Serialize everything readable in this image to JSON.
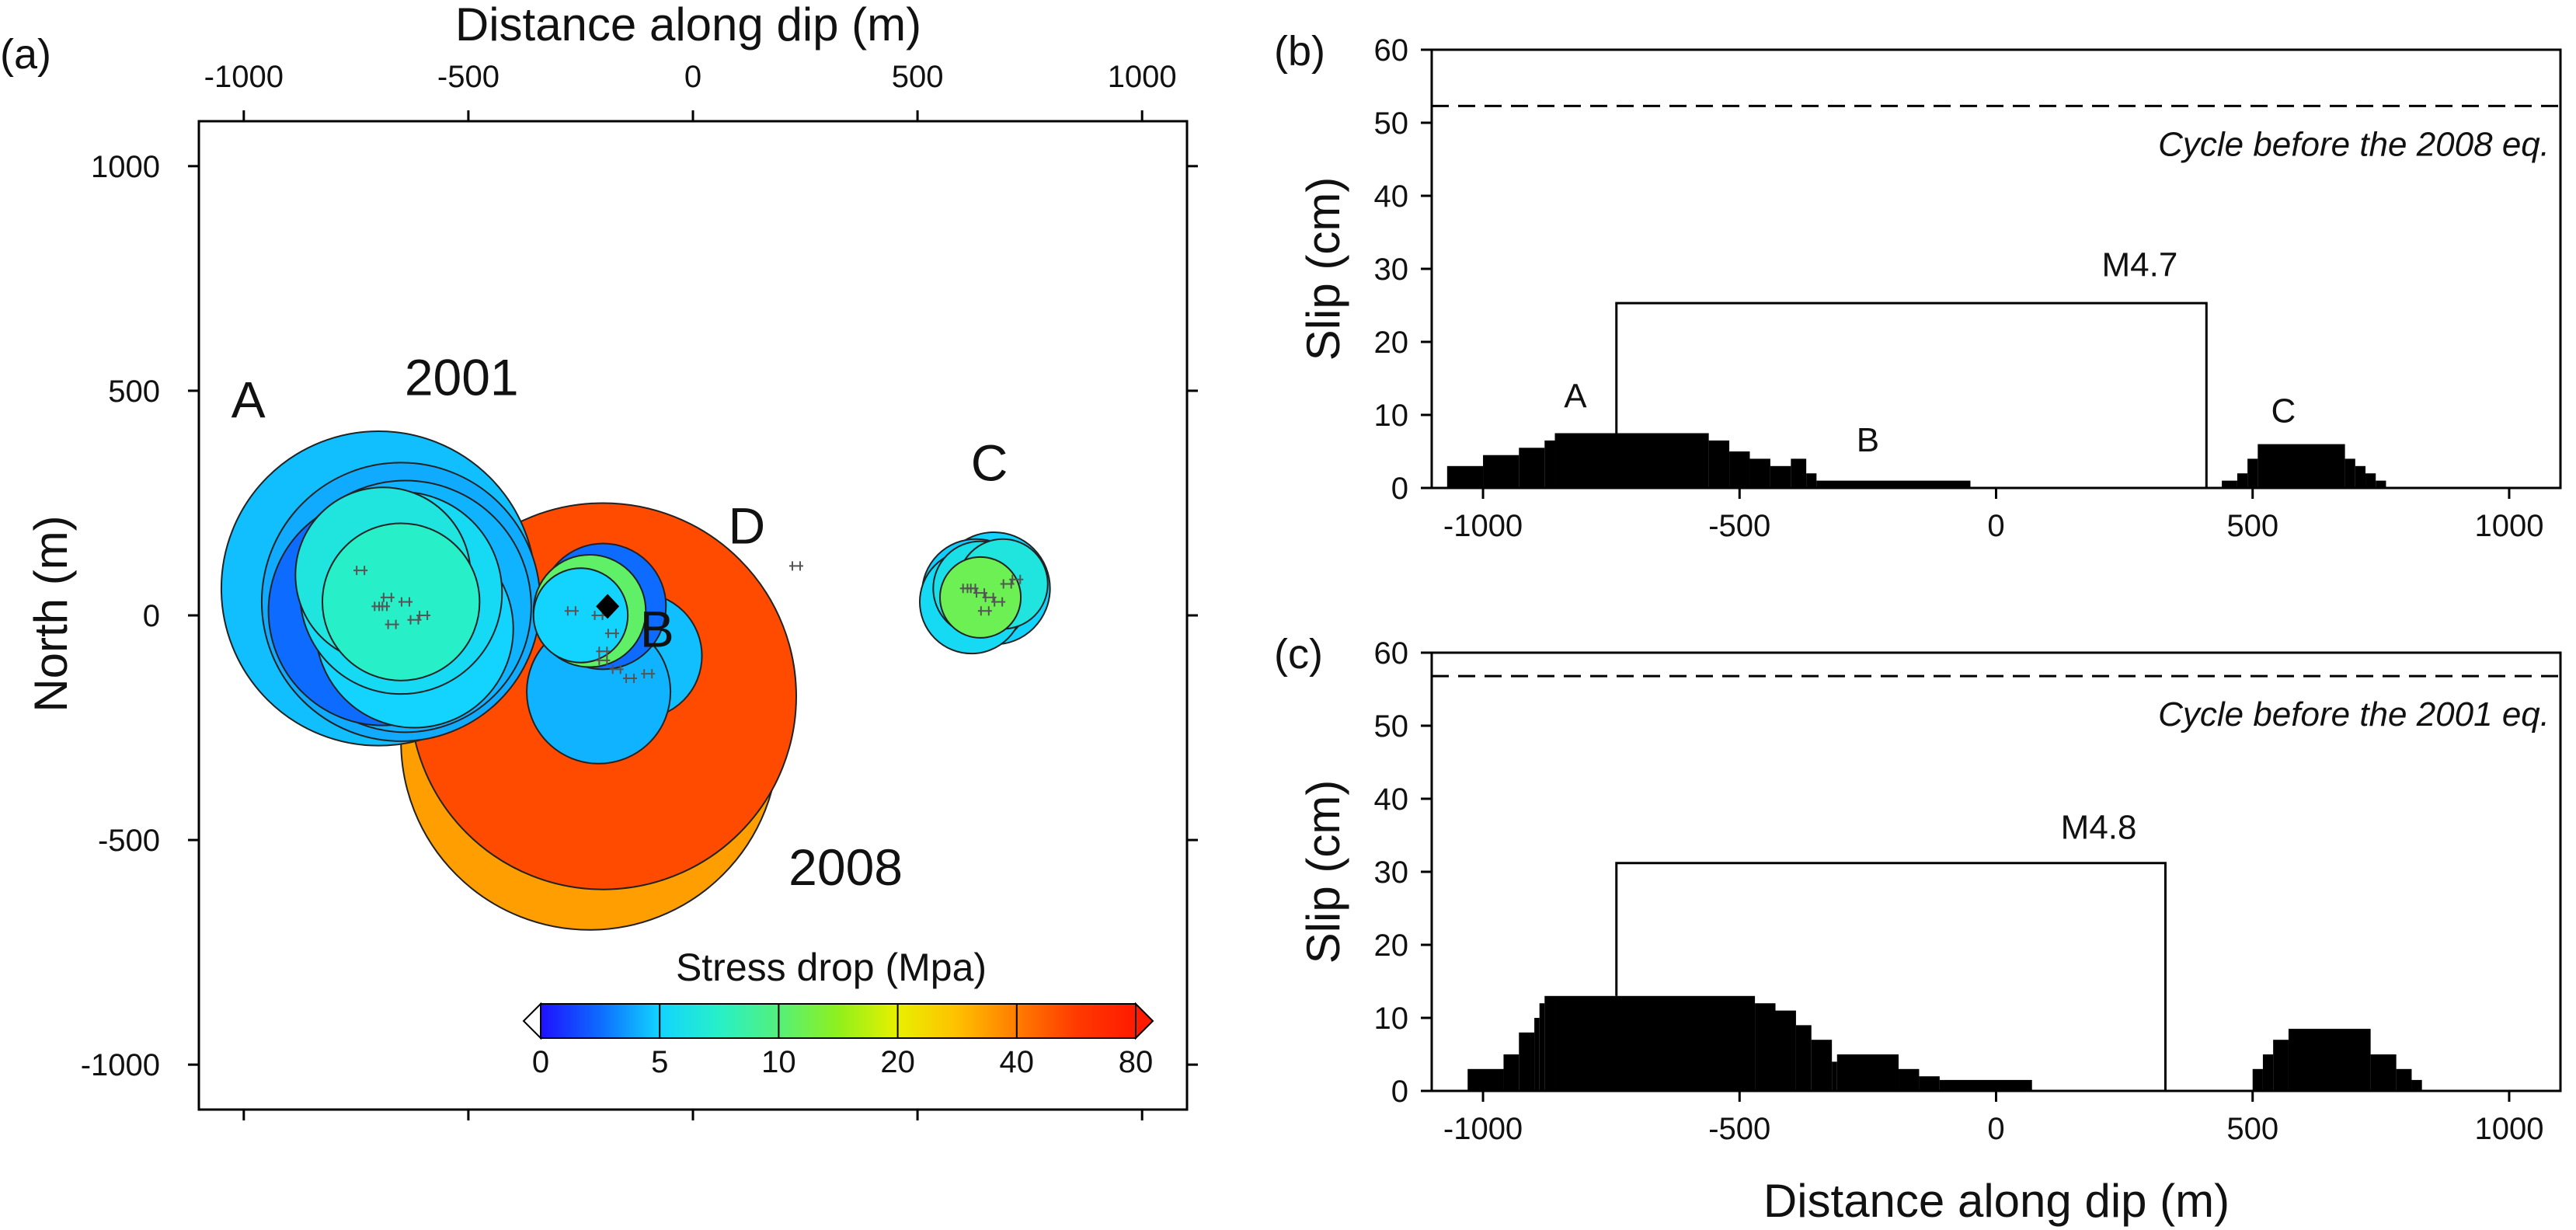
{
  "colors": {
    "background": "#ffffff",
    "axis": "#000000",
    "slip_fill": "#000000",
    "colorbar_stops": [
      "#1f10ff",
      "#0d6cff",
      "#12d4ff",
      "#27f0c8",
      "#54f07a",
      "#8ff01c",
      "#e8f000",
      "#ffc000",
      "#ff7c00",
      "#ff3a00",
      "#ff1a00"
    ],
    "hypocenter": "#000000",
    "cluster_marks": "#555555"
  },
  "chart_data": [
    {
      "id": "a",
      "panel_label": "(a)",
      "type": "scatter",
      "subtype": "circular source-patch map",
      "xlabel": "Distance along dip (m)",
      "ylabel": "North (m)",
      "xlim": [
        -1100,
        1100
      ],
      "ylim": [
        -1100,
        1100
      ],
      "xticks": [
        -1000,
        -500,
        0,
        500,
        1000
      ],
      "xtick_labels": [
        "-1000",
        "-500",
        "0",
        "500",
        "1000"
      ],
      "yticks": [
        1000,
        500,
        0,
        -500,
        -1000
      ],
      "ytick_labels": [
        "1000",
        "500",
        "0",
        "-500",
        "-1000"
      ],
      "x_axis_position": "top",
      "grid": false,
      "patches": [
        {
          "x": -230,
          "y": -280,
          "r": 420,
          "stress_drop": 35
        },
        {
          "x": -200,
          "y": -180,
          "r": 430,
          "stress_drop": 55
        },
        {
          "x": -700,
          "y": 60,
          "r": 350,
          "stress_drop": 4.5
        },
        {
          "x": -650,
          "y": 30,
          "r": 310,
          "stress_drop": 4
        },
        {
          "x": -640,
          "y": 20,
          "r": 280,
          "stress_drop": 4.2
        },
        {
          "x": -690,
          "y": 10,
          "r": 255,
          "stress_drop": 2.5
        },
        {
          "x": -620,
          "y": -30,
          "r": 220,
          "stress_drop": 5
        },
        {
          "x": -650,
          "y": 50,
          "r": 225,
          "stress_drop": 5.5
        },
        {
          "x": -690,
          "y": 90,
          "r": 195,
          "stress_drop": 6.5
        },
        {
          "x": -650,
          "y": 30,
          "r": 175,
          "stress_drop": 7.5
        },
        {
          "x": -120,
          "y": -90,
          "r": 140,
          "stress_drop": 4.5
        },
        {
          "x": -210,
          "y": -170,
          "r": 160,
          "stress_drop": 4.2
        },
        {
          "x": -200,
          "y": 20,
          "r": 140,
          "stress_drop": 2.5
        },
        {
          "x": -230,
          "y": 10,
          "r": 125,
          "stress_drop": 11
        },
        {
          "x": -250,
          "y": 0,
          "r": 105,
          "stress_drop": 5
        },
        {
          "x": 670,
          "y": 60,
          "r": 125,
          "stress_drop": 5
        },
        {
          "x": 630,
          "y": 50,
          "r": 120,
          "stress_drop": 4.8
        },
        {
          "x": 620,
          "y": 30,
          "r": 115,
          "stress_drop": 5.5
        },
        {
          "x": 640,
          "y": 60,
          "r": 105,
          "stress_drop": 6
        },
        {
          "x": 690,
          "y": 70,
          "r": 100,
          "stress_drop": 6.5
        },
        {
          "x": 640,
          "y": 40,
          "r": 90,
          "stress_drop": 12
        }
      ],
      "hypocenter": {
        "x": -190,
        "y": 20
      },
      "clusters": [
        {
          "x": [
            -740,
            -680,
            -690,
            -640,
            -620,
            -700,
            -670,
            -600
          ],
          "y": [
            100,
            40,
            20,
            30,
            -10,
            20,
            -20,
            0
          ]
        },
        {
          "x": [
            -270,
            -210,
            -200,
            -170,
            -140,
            -100,
            -200,
            -180
          ],
          "y": [
            10,
            0,
            -80,
            -120,
            -140,
            -130,
            -100,
            -40
          ]
        },
        {
          "x": [
            610,
            640,
            660,
            700,
            720,
            680,
            650,
            620
          ],
          "y": [
            60,
            50,
            40,
            70,
            80,
            30,
            10,
            60
          ]
        },
        {
          "x": [
            230
          ],
          "y": [
            110
          ]
        }
      ],
      "annotations": [
        {
          "text": "A",
          "x": -990,
          "y": 440,
          "size": "big"
        },
        {
          "text": "2001",
          "x": -515,
          "y": 490,
          "size": "big"
        },
        {
          "text": "D",
          "x": 120,
          "y": 160,
          "size": "big"
        },
        {
          "text": "B",
          "x": -80,
          "y": -70,
          "size": "big"
        },
        {
          "text": "C",
          "x": 660,
          "y": 300,
          "size": "big"
        },
        {
          "text": "2008",
          "x": 340,
          "y": -600,
          "size": "big"
        }
      ],
      "colorbar": {
        "title": "Stress drop (Mpa)",
        "ticks": [
          "0",
          "5",
          "10",
          "20",
          "40",
          "80"
        ],
        "values": [
          0,
          5,
          10,
          20,
          40,
          80
        ],
        "extend": "both"
      }
    },
    {
      "id": "b",
      "panel_label": "(b)",
      "type": "area",
      "xlabel": "",
      "ylabel": "Slip (cm)",
      "xlim": [
        -1100,
        1100
      ],
      "ylim": [
        0,
        60
      ],
      "xticks": [
        -1000,
        -500,
        0,
        500,
        1000
      ],
      "xtick_labels": [
        "-1000",
        "-500",
        "0",
        "500",
        "1000"
      ],
      "yticks": [
        0,
        10,
        20,
        30,
        40,
        50,
        60
      ],
      "ytick_labels": [
        "0",
        "10",
        "20",
        "30",
        "40",
        "50",
        "60"
      ],
      "grid": false,
      "cycle_line": {
        "y": 52.3,
        "label": "Cycle before the 2008 eq."
      },
      "slip_segments": [
        {
          "x0": -1070,
          "x1": -1000,
          "y": 3
        },
        {
          "x0": -1000,
          "x1": -930,
          "y": 4.5
        },
        {
          "x0": -930,
          "x1": -880,
          "y": 5.5
        },
        {
          "x0": -880,
          "x1": -860,
          "y": 6.5
        },
        {
          "x0": -860,
          "x1": -560,
          "y": 7.5
        },
        {
          "x0": -560,
          "x1": -520,
          "y": 6.5
        },
        {
          "x0": -520,
          "x1": -480,
          "y": 5
        },
        {
          "x0": -480,
          "x1": -440,
          "y": 4
        },
        {
          "x0": -440,
          "x1": -400,
          "y": 3
        },
        {
          "x0": -400,
          "x1": -370,
          "y": 4
        },
        {
          "x0": -370,
          "x1": -350,
          "y": 2
        },
        {
          "x0": -350,
          "x1": -50,
          "y": 1
        },
        {
          "x0": 440,
          "x1": 470,
          "y": 1
        },
        {
          "x0": 470,
          "x1": 490,
          "y": 2
        },
        {
          "x0": 490,
          "x1": 510,
          "y": 4
        },
        {
          "x0": 510,
          "x1": 680,
          "y": 6
        },
        {
          "x0": 680,
          "x1": 700,
          "y": 4
        },
        {
          "x0": 700,
          "x1": 720,
          "y": 3
        },
        {
          "x0": 720,
          "x1": 740,
          "y": 2
        },
        {
          "x0": 740,
          "x1": 760,
          "y": 1
        }
      ],
      "bracket": {
        "x0": -740,
        "x1": 410,
        "y": 25.3,
        "y_base": 7.5,
        "label": "M4.7",
        "label_x": 280,
        "label_y": 29
      },
      "annotations": [
        {
          "text": "A",
          "x": -820,
          "y": 11
        },
        {
          "text": "B",
          "x": -250,
          "y": 5
        },
        {
          "text": "C",
          "x": 560,
          "y": 9
        }
      ]
    },
    {
      "id": "c",
      "panel_label": "(c)",
      "type": "area",
      "xlabel": "Distance along dip (m)",
      "ylabel": "Slip (cm)",
      "xlim": [
        -1100,
        1100
      ],
      "ylim": [
        0,
        60
      ],
      "xticks": [
        -1000,
        -500,
        0,
        500,
        1000
      ],
      "xtick_labels": [
        "-1000",
        "-500",
        "0",
        "500",
        "1000"
      ],
      "yticks": [
        0,
        10,
        20,
        30,
        40,
        50,
        60
      ],
      "ytick_labels": [
        "0",
        "10",
        "20",
        "30",
        "40",
        "50",
        "60"
      ],
      "grid": false,
      "cycle_line": {
        "y": 56.8,
        "label": "Cycle before the 2001 eq."
      },
      "slip_segments": [
        {
          "x0": -1030,
          "x1": -960,
          "y": 3
        },
        {
          "x0": -960,
          "x1": -930,
          "y": 5
        },
        {
          "x0": -930,
          "x1": -900,
          "y": 8
        },
        {
          "x0": -900,
          "x1": -890,
          "y": 10
        },
        {
          "x0": -890,
          "x1": -880,
          "y": 12
        },
        {
          "x0": -880,
          "x1": -860,
          "y": 13
        },
        {
          "x0": -860,
          "x1": -470,
          "y": 13
        },
        {
          "x0": -470,
          "x1": -430,
          "y": 12
        },
        {
          "x0": -430,
          "x1": -390,
          "y": 11
        },
        {
          "x0": -390,
          "x1": -360,
          "y": 9
        },
        {
          "x0": -360,
          "x1": -320,
          "y": 7
        },
        {
          "x0": -320,
          "x1": -310,
          "y": 4
        },
        {
          "x0": -310,
          "x1": -190,
          "y": 5
        },
        {
          "x0": -190,
          "x1": -150,
          "y": 3
        },
        {
          "x0": -150,
          "x1": -110,
          "y": 2
        },
        {
          "x0": -110,
          "x1": 70,
          "y": 1.5
        },
        {
          "x0": 500,
          "x1": 520,
          "y": 3
        },
        {
          "x0": 520,
          "x1": 540,
          "y": 5
        },
        {
          "x0": 540,
          "x1": 570,
          "y": 7
        },
        {
          "x0": 570,
          "x1": 730,
          "y": 8.5
        },
        {
          "x0": 730,
          "x1": 780,
          "y": 5
        },
        {
          "x0": 780,
          "x1": 810,
          "y": 3
        },
        {
          "x0": 810,
          "x1": 830,
          "y": 1.5
        }
      ],
      "bracket": {
        "x0": -740,
        "x1": 330,
        "y": 31.2,
        "y_base": 13,
        "label": "M4.8",
        "label_x": 200,
        "label_y": 34.5
      },
      "annotations": []
    }
  ]
}
